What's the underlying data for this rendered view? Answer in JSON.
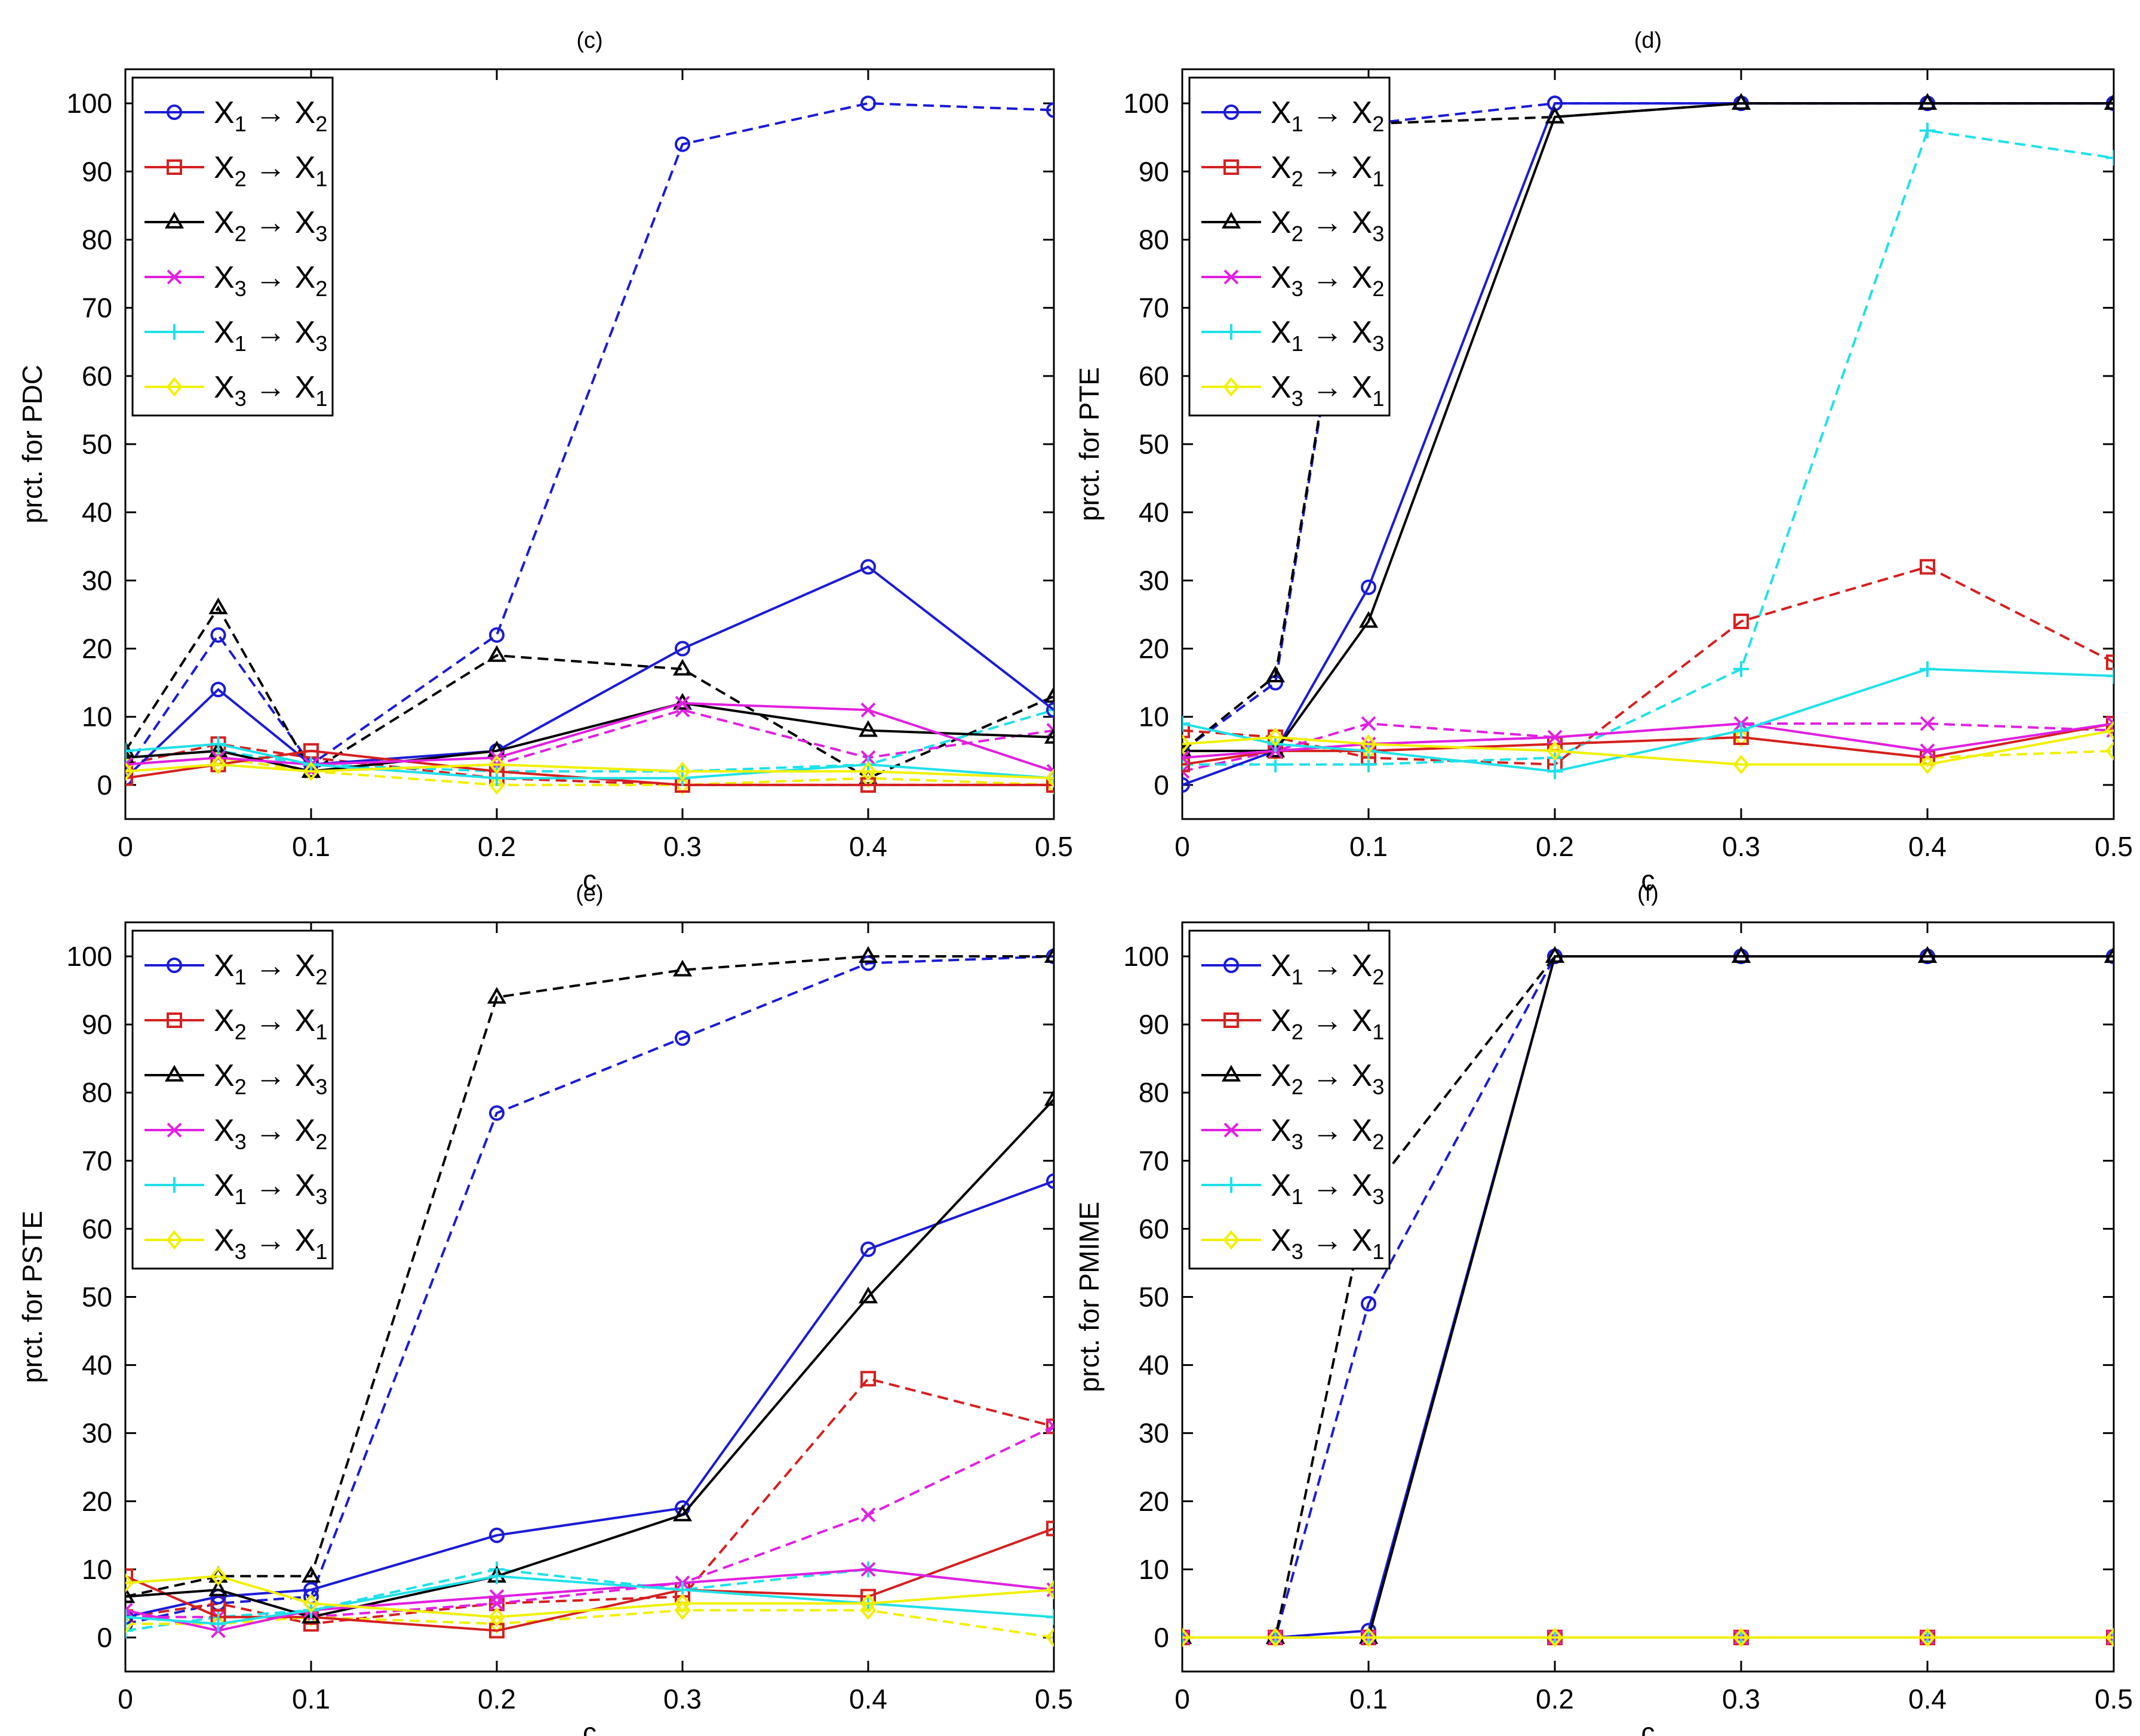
{
  "colors": {
    "blue": "#1b1bd6",
    "red": "#d42020",
    "black": "#000000",
    "magenta": "#e020e0",
    "cyan": "#20e0e8",
    "yellow": "#f0f000"
  },
  "legend_entries": [
    {
      "from": "X",
      "from_sub": "1",
      "arrow": "→",
      "to": "X",
      "to_sub": "2",
      "color": "#1b1bd6",
      "marker": "circle"
    },
    {
      "from": "X",
      "from_sub": "2",
      "arrow": "→",
      "to": "X",
      "to_sub": "1",
      "color": "#d42020",
      "marker": "square"
    },
    {
      "from": "X",
      "from_sub": "2",
      "arrow": "→",
      "to": "X",
      "to_sub": "3",
      "color": "#000000",
      "marker": "triangle"
    },
    {
      "from": "X",
      "from_sub": "3",
      "arrow": "→",
      "to": "X",
      "to_sub": "2",
      "color": "#e020e0",
      "marker": "x"
    },
    {
      "from": "X",
      "from_sub": "1",
      "arrow": "→",
      "to": "X",
      "to_sub": "3",
      "color": "#20e0e8",
      "marker": "plus"
    },
    {
      "from": "X",
      "from_sub": "3",
      "arrow": "→",
      "to": "X",
      "to_sub": "1",
      "color": "#f0f000",
      "marker": "diamond"
    }
  ],
  "chart_data": [
    {
      "type": "line",
      "title": "(c)",
      "xlabel": "c",
      "ylabel": "prct. for PDC",
      "x": [
        0,
        0.05,
        0.1,
        0.2,
        0.3,
        0.4,
        0.5
      ],
      "xticks": [
        "0",
        "0.1",
        "0.2",
        "0.3",
        "0.4",
        "0.5"
      ],
      "yticks": [
        "0",
        "10",
        "20",
        "30",
        "40",
        "50",
        "60",
        "70",
        "80",
        "90",
        "100"
      ],
      "xlim": [
        0,
        0.5
      ],
      "ylim": [
        -5,
        105
      ],
      "legend": "top-left",
      "solid": [
        [
          1,
          14,
          3,
          5,
          20,
          32,
          11
        ],
        [
          1,
          3,
          5,
          2,
          0,
          0,
          0
        ],
        [
          4,
          5,
          2,
          5,
          12,
          8,
          7
        ],
        [
          3,
          4,
          3,
          4,
          12,
          11,
          2
        ],
        [
          5,
          6,
          3,
          1,
          1,
          3,
          1
        ],
        [
          2,
          3,
          2,
          3,
          2,
          2,
          1
        ]
      ],
      "dashed": [
        [
          2,
          22,
          3,
          22,
          94,
          100,
          99
        ],
        [
          3,
          6,
          4,
          1,
          0,
          0,
          0
        ],
        [
          5,
          26,
          2,
          19,
          17,
          1,
          13
        ],
        [
          3,
          4,
          2,
          3,
          11,
          4,
          8
        ],
        [
          4,
          5,
          3,
          2,
          2,
          3,
          11
        ],
        [
          3,
          4,
          2,
          0,
          0,
          1,
          0
        ]
      ]
    },
    {
      "type": "line",
      "title": "(d)",
      "xlabel": "c",
      "ylabel": "prct. for PTE",
      "x": [
        0,
        0.05,
        0.1,
        0.2,
        0.3,
        0.4,
        0.5
      ],
      "xticks": [
        "0",
        "0.1",
        "0.2",
        "0.3",
        "0.4",
        "0.5"
      ],
      "yticks": [
        "0",
        "10",
        "20",
        "30",
        "40",
        "50",
        "60",
        "70",
        "80",
        "90",
        "100"
      ],
      "xlim": [
        0,
        0.5
      ],
      "ylim": [
        -5,
        105
      ],
      "legend": "top-left",
      "solid": [
        [
          0,
          5,
          29,
          100,
          100,
          100,
          100
        ],
        [
          3,
          5,
          5,
          6,
          7,
          4,
          9
        ],
        [
          5,
          5,
          24,
          98,
          100,
          100,
          100
        ],
        [
          4,
          5,
          6,
          7,
          9,
          5,
          9
        ],
        [
          9,
          6,
          5,
          2,
          8,
          17,
          16
        ],
        [
          6,
          7,
          6,
          5,
          3,
          3,
          8
        ]
      ],
      "dashed": [
        [
          5,
          15,
          97,
          100,
          100,
          100,
          100
        ],
        [
          8,
          7,
          4,
          3,
          24,
          32,
          18
        ],
        [
          5,
          16,
          97,
          98,
          100,
          100,
          100
        ],
        [
          2,
          5,
          9,
          7,
          9,
          9,
          8
        ],
        [
          3,
          3,
          3,
          4,
          17,
          96,
          92
        ],
        [
          4,
          5,
          5,
          6,
          7,
          4,
          5
        ]
      ]
    },
    {
      "type": "line",
      "title": "(e)",
      "xlabel": "c",
      "ylabel": "prct. for PSTE",
      "x": [
        0,
        0.05,
        0.1,
        0.2,
        0.3,
        0.4,
        0.5
      ],
      "xticks": [
        "0",
        "0.1",
        "0.2",
        "0.3",
        "0.4",
        "0.5"
      ],
      "yticks": [
        "0",
        "10",
        "20",
        "30",
        "40",
        "50",
        "60",
        "70",
        "80",
        "90",
        "100"
      ],
      "xlim": [
        0,
        0.5
      ],
      "ylim": [
        -5,
        105
      ],
      "legend": "top-left",
      "solid": [
        [
          3,
          6,
          7,
          15,
          19,
          57,
          67
        ],
        [
          9,
          3,
          3,
          1,
          7,
          6,
          16
        ],
        [
          6,
          7,
          3,
          9,
          18,
          50,
          79
        ],
        [
          4,
          1,
          4,
          6,
          8,
          10,
          7
        ],
        [
          3,
          2,
          4,
          9,
          7,
          5,
          3
        ],
        [
          8,
          9,
          5,
          3,
          5,
          5,
          7
        ]
      ],
      "dashed": [
        [
          2,
          5,
          6,
          77,
          88,
          99,
          100
        ],
        [
          3,
          5,
          2,
          5,
          6,
          38,
          31
        ],
        [
          6,
          9,
          9,
          94,
          98,
          100,
          100
        ],
        [
          3,
          3,
          3,
          5,
          8,
          18,
          31
        ],
        [
          1,
          3,
          4,
          10,
          7,
          10,
          7
        ],
        [
          2,
          2,
          3,
          2,
          4,
          4,
          0
        ]
      ]
    },
    {
      "type": "line",
      "title": "(f)",
      "xlabel": "c",
      "ylabel": "prct. for PMIME",
      "x": [
        0,
        0.05,
        0.1,
        0.2,
        0.3,
        0.4,
        0.5
      ],
      "xticks": [
        "0",
        "0.1",
        "0.2",
        "0.3",
        "0.4",
        "0.5"
      ],
      "yticks": [
        "0",
        "10",
        "20",
        "30",
        "40",
        "50",
        "60",
        "70",
        "80",
        "90",
        "100"
      ],
      "xlim": [
        0,
        0.5
      ],
      "ylim": [
        -5,
        105
      ],
      "legend": "top-left",
      "solid": [
        [
          0,
          0,
          1,
          100,
          100,
          100,
          100
        ],
        [
          0,
          0,
          0,
          0,
          0,
          0,
          0
        ],
        [
          0,
          0,
          0,
          100,
          100,
          100,
          100
        ],
        [
          0,
          0,
          0,
          0,
          0,
          0,
          0
        ],
        [
          0,
          0,
          0,
          0,
          0,
          0,
          0
        ],
        [
          0,
          0,
          0,
          0,
          0,
          0,
          0
        ]
      ],
      "dashed": [
        [
          0,
          0,
          49,
          100,
          100,
          100,
          100
        ],
        [
          0,
          0,
          0,
          0,
          0,
          0,
          0
        ],
        [
          0,
          0,
          65,
          100,
          100,
          100,
          100
        ],
        [
          0,
          0,
          0,
          0,
          0,
          0,
          0
        ],
        [
          0,
          0,
          0,
          0,
          0,
          0,
          0
        ],
        [
          0,
          0,
          0,
          0,
          0,
          0,
          0
        ]
      ]
    }
  ]
}
